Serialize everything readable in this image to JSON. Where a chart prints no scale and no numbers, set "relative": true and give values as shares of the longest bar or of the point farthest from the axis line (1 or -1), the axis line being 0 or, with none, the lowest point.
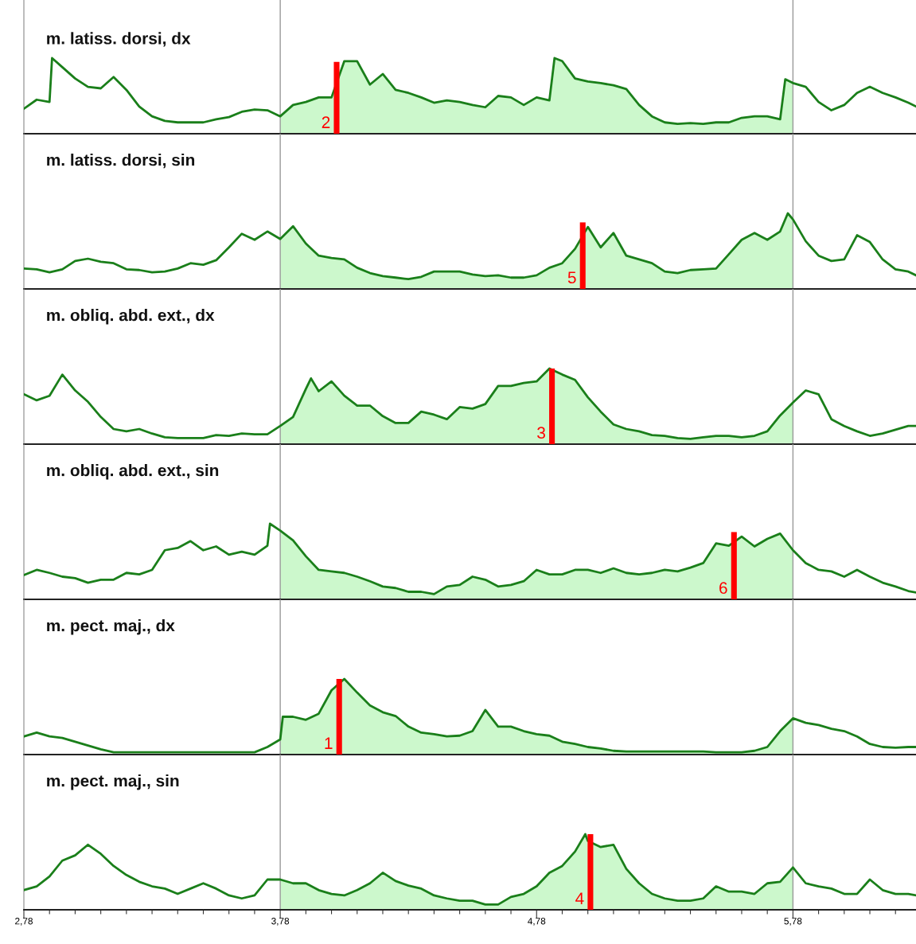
{
  "chart_data": [
    {
      "type": "line",
      "title": "m. latiss. dorsi, dx",
      "relative": true,
      "xlim": [
        2.78,
        6.26
      ],
      "tick_labels": false,
      "series": [
        {
          "color": "#1a7f1a",
          "x": [
            2.78,
            2.83,
            2.88,
            2.89,
            2.93,
            2.98,
            3.03,
            3.08,
            3.13,
            3.18,
            3.23,
            3.28,
            3.33,
            3.38,
            3.43,
            3.48,
            3.53,
            3.58,
            3.63,
            3.68,
            3.73,
            3.78,
            3.83,
            3.88,
            3.93,
            3.98,
            4.03,
            4.08,
            4.13,
            4.18,
            4.23,
            4.28,
            4.33,
            4.38,
            4.43,
            4.48,
            4.53,
            4.58,
            4.63,
            4.68,
            4.73,
            4.78,
            4.83,
            4.85,
            4.88,
            4.93,
            4.98,
            5.03,
            5.08,
            5.13,
            5.18,
            5.23,
            5.28,
            5.33,
            5.38,
            5.43,
            5.48,
            5.53,
            5.58,
            5.63,
            5.68,
            5.73,
            5.75,
            5.78,
            5.83,
            5.88,
            5.93,
            5.98,
            6.03,
            6.08,
            6.13,
            6.18,
            6.23,
            6.26
          ],
          "values": [
            0.33,
            0.45,
            0.42,
            1.0,
            0.88,
            0.73,
            0.62,
            0.6,
            0.75,
            0.58,
            0.36,
            0.23,
            0.17,
            0.15,
            0.15,
            0.15,
            0.19,
            0.22,
            0.29,
            0.32,
            0.31,
            0.23,
            0.38,
            0.42,
            0.48,
            0.48,
            0.96,
            0.96,
            0.65,
            0.79,
            0.58,
            0.54,
            0.48,
            0.41,
            0.44,
            0.42,
            0.38,
            0.35,
            0.5,
            0.48,
            0.38,
            0.48,
            0.44,
            1.0,
            0.96,
            0.73,
            0.69,
            0.67,
            0.64,
            0.59,
            0.38,
            0.23,
            0.15,
            0.13,
            0.14,
            0.13,
            0.15,
            0.15,
            0.21,
            0.23,
            0.23,
            0.19,
            0.72,
            0.67,
            0.62,
            0.42,
            0.31,
            0.38,
            0.54,
            0.62,
            0.54,
            0.48,
            0.41,
            0.36
          ]
        },
        {
          "type": "area",
          "color": "#ccf8cc",
          "x": [
            3.78,
            3.83,
            3.88,
            3.93,
            3.98,
            4.03,
            4.08,
            4.13,
            4.18,
            4.23,
            4.28,
            4.33,
            4.38,
            4.43,
            4.48,
            4.53,
            4.58,
            4.63,
            4.68,
            4.73,
            4.78,
            4.83,
            4.85,
            4.88,
            4.93,
            4.98,
            5.03,
            5.08,
            5.13,
            5.18,
            5.23,
            5.28,
            5.33,
            5.38,
            5.43,
            5.48,
            5.53,
            5.58,
            5.63,
            5.68,
            5.73,
            5.75,
            5.78
          ],
          "values": [
            0.23,
            0.38,
            0.42,
            0.48,
            0.48,
            0.96,
            0.96,
            0.65,
            0.79,
            0.58,
            0.54,
            0.48,
            0.41,
            0.44,
            0.42,
            0.38,
            0.35,
            0.5,
            0.48,
            0.38,
            0.48,
            0.44,
            1.0,
            0.96,
            0.73,
            0.69,
            0.67,
            0.64,
            0.59,
            0.38,
            0.23,
            0.15,
            0.13,
            0.14,
            0.13,
            0.15,
            0.15,
            0.21,
            0.23,
            0.23,
            0.19,
            0.72,
            0.67
          ]
        },
        {
          "type": "bar",
          "color": "#ff0000",
          "x": [
            4.0
          ],
          "values": [
            0.95
          ]
        }
      ],
      "annotations": [
        "2"
      ],
      "ref_lines": [
        {
          "axis": "x",
          "value": 3.78,
          "color": "#999999"
        },
        {
          "axis": "x",
          "value": 5.78,
          "color": "#999999"
        }
      ]
    },
    {
      "type": "line",
      "title": "m. latiss. dorsi, sin",
      "relative": true,
      "xlim": [
        2.78,
        6.26
      ],
      "tick_labels": false,
      "series": [
        {
          "color": "#1a7f1a",
          "x": [
            2.78,
            2.83,
            2.88,
            2.93,
            2.98,
            3.03,
            3.08,
            3.13,
            3.18,
            3.23,
            3.28,
            3.33,
            3.38,
            3.43,
            3.48,
            3.53,
            3.58,
            3.63,
            3.68,
            3.73,
            3.78,
            3.83,
            3.88,
            3.93,
            3.98,
            4.03,
            4.08,
            4.13,
            4.18,
            4.23,
            4.28,
            4.33,
            4.38,
            4.43,
            4.48,
            4.53,
            4.58,
            4.63,
            4.68,
            4.73,
            4.78,
            4.83,
            4.88,
            4.93,
            4.98,
            5.03,
            5.08,
            5.13,
            5.18,
            5.23,
            5.28,
            5.33,
            5.38,
            5.43,
            5.48,
            5.53,
            5.58,
            5.63,
            5.68,
            5.73,
            5.76,
            5.78,
            5.83,
            5.88,
            5.93,
            5.98,
            6.03,
            6.08,
            6.13,
            6.18,
            6.23,
            6.26
          ],
          "values": [
            0.27,
            0.26,
            0.22,
            0.26,
            0.37,
            0.4,
            0.36,
            0.34,
            0.26,
            0.25,
            0.22,
            0.23,
            0.27,
            0.34,
            0.32,
            0.38,
            0.55,
            0.73,
            0.65,
            0.76,
            0.66,
            0.83,
            0.6,
            0.44,
            0.41,
            0.39,
            0.28,
            0.21,
            0.17,
            0.15,
            0.13,
            0.16,
            0.23,
            0.23,
            0.23,
            0.19,
            0.17,
            0.18,
            0.15,
            0.15,
            0.18,
            0.28,
            0.34,
            0.53,
            0.82,
            0.55,
            0.74,
            0.44,
            0.39,
            0.34,
            0.23,
            0.21,
            0.25,
            0.26,
            0.27,
            0.46,
            0.65,
            0.74,
            0.65,
            0.76,
            1.0,
            0.92,
            0.63,
            0.44,
            0.37,
            0.39,
            0.71,
            0.62,
            0.39,
            0.26,
            0.23,
            0.18
          ]
        },
        {
          "type": "area",
          "color": "#ccf8cc",
          "x": [
            3.78,
            3.83,
            3.88,
            3.93,
            3.98,
            4.03,
            4.08,
            4.13,
            4.18,
            4.23,
            4.28,
            4.33,
            4.38,
            4.43,
            4.48,
            4.53,
            4.58,
            4.63,
            4.68,
            4.73,
            4.78,
            4.83,
            4.88,
            4.93,
            4.98,
            5.03,
            5.08,
            5.13,
            5.18,
            5.23,
            5.28,
            5.33,
            5.38,
            5.43,
            5.48,
            5.53,
            5.58,
            5.63,
            5.68,
            5.73,
            5.76,
            5.78
          ],
          "values": [
            0.66,
            0.83,
            0.6,
            0.44,
            0.41,
            0.39,
            0.28,
            0.21,
            0.17,
            0.15,
            0.13,
            0.16,
            0.23,
            0.23,
            0.23,
            0.19,
            0.17,
            0.18,
            0.15,
            0.15,
            0.18,
            0.28,
            0.34,
            0.53,
            0.82,
            0.55,
            0.74,
            0.44,
            0.39,
            0.34,
            0.23,
            0.21,
            0.25,
            0.26,
            0.27,
            0.46,
            0.65,
            0.74,
            0.65,
            0.76,
            1.0,
            0.92
          ]
        },
        {
          "type": "bar",
          "color": "#ff0000",
          "x": [
            4.96
          ],
          "values": [
            0.88
          ]
        }
      ],
      "annotations": [
        "5"
      ],
      "ref_lines": [
        {
          "axis": "x",
          "value": 3.78,
          "color": "#999999"
        },
        {
          "axis": "x",
          "value": 5.78,
          "color": "#999999"
        }
      ]
    },
    {
      "type": "line",
      "title": "m. obliq. abd. ext., dx",
      "relative": true,
      "xlim": [
        2.78,
        6.26
      ],
      "tick_labels": false,
      "series": [
        {
          "color": "#1a7f1a",
          "x": [
            2.78,
            2.83,
            2.88,
            2.93,
            2.98,
            3.03,
            3.08,
            3.13,
            3.18,
            3.23,
            3.28,
            3.33,
            3.38,
            3.43,
            3.48,
            3.53,
            3.58,
            3.63,
            3.68,
            3.73,
            3.78,
            3.83,
            3.88,
            3.9,
            3.93,
            3.98,
            4.03,
            4.08,
            4.13,
            4.18,
            4.23,
            4.28,
            4.33,
            4.38,
            4.43,
            4.48,
            4.53,
            4.58,
            4.63,
            4.68,
            4.73,
            4.78,
            4.83,
            4.88,
            4.93,
            4.98,
            5.03,
            5.08,
            5.13,
            5.18,
            5.23,
            5.28,
            5.33,
            5.38,
            5.43,
            5.48,
            5.53,
            5.58,
            5.63,
            5.68,
            5.73,
            5.78,
            5.83,
            5.88,
            5.93,
            5.98,
            6.03,
            6.08,
            6.13,
            6.18,
            6.23,
            6.26
          ],
          "values": [
            0.66,
            0.58,
            0.64,
            0.92,
            0.71,
            0.56,
            0.36,
            0.2,
            0.17,
            0.2,
            0.14,
            0.09,
            0.08,
            0.08,
            0.08,
            0.12,
            0.11,
            0.14,
            0.13,
            0.13,
            0.24,
            0.36,
            0.73,
            0.87,
            0.7,
            0.83,
            0.64,
            0.51,
            0.51,
            0.37,
            0.28,
            0.28,
            0.43,
            0.39,
            0.33,
            0.49,
            0.47,
            0.53,
            0.77,
            0.77,
            0.81,
            0.83,
            1.0,
            0.92,
            0.85,
            0.62,
            0.43,
            0.26,
            0.2,
            0.17,
            0.12,
            0.11,
            0.08,
            0.07,
            0.09,
            0.11,
            0.11,
            0.09,
            0.11,
            0.17,
            0.38,
            0.55,
            0.71,
            0.66,
            0.33,
            0.24,
            0.17,
            0.11,
            0.14,
            0.19,
            0.24,
            0.24
          ]
        },
        {
          "type": "area",
          "color": "#ccf8cc",
          "x": [
            3.78,
            3.83,
            3.88,
            3.9,
            3.93,
            3.98,
            4.03,
            4.08,
            4.13,
            4.18,
            4.23,
            4.28,
            4.33,
            4.38,
            4.43,
            4.48,
            4.53,
            4.58,
            4.63,
            4.68,
            4.73,
            4.78,
            4.83,
            4.88,
            4.93,
            4.98,
            5.03,
            5.08,
            5.13,
            5.18,
            5.23,
            5.28,
            5.33,
            5.38,
            5.43,
            5.48,
            5.53,
            5.58,
            5.63,
            5.68,
            5.73,
            5.78
          ],
          "values": [
            0.24,
            0.36,
            0.73,
            0.87,
            0.7,
            0.83,
            0.64,
            0.51,
            0.51,
            0.37,
            0.28,
            0.28,
            0.43,
            0.39,
            0.33,
            0.49,
            0.47,
            0.53,
            0.77,
            0.77,
            0.81,
            0.83,
            1.0,
            0.92,
            0.85,
            0.62,
            0.43,
            0.26,
            0.2,
            0.17,
            0.12,
            0.11,
            0.08,
            0.07,
            0.09,
            0.11,
            0.11,
            0.09,
            0.11,
            0.17,
            0.38,
            0.55
          ]
        },
        {
          "type": "bar",
          "color": "#ff0000",
          "x": [
            4.84
          ],
          "values": [
            1.0
          ]
        }
      ],
      "annotations": [
        "3"
      ],
      "ref_lines": [
        {
          "axis": "x",
          "value": 3.78,
          "color": "#999999"
        },
        {
          "axis": "x",
          "value": 5.78,
          "color": "#999999"
        }
      ]
    },
    {
      "type": "line",
      "title": "m. obliq. abd. ext., sin",
      "relative": true,
      "xlim": [
        2.78,
        6.26
      ],
      "tick_labels": false,
      "series": [
        {
          "color": "#1a7f1a",
          "x": [
            2.78,
            2.83,
            2.88,
            2.93,
            2.98,
            3.03,
            3.08,
            3.13,
            3.18,
            3.23,
            3.28,
            3.33,
            3.38,
            3.43,
            3.48,
            3.53,
            3.58,
            3.63,
            3.68,
            3.73,
            3.74,
            3.78,
            3.83,
            3.88,
            3.93,
            3.98,
            4.03,
            4.08,
            4.13,
            4.18,
            4.23,
            4.28,
            4.33,
            4.38,
            4.43,
            4.48,
            4.53,
            4.58,
            4.63,
            4.68,
            4.73,
            4.78,
            4.83,
            4.88,
            4.93,
            4.98,
            5.03,
            5.08,
            5.13,
            5.18,
            5.23,
            5.28,
            5.33,
            5.38,
            5.43,
            5.48,
            5.53,
            5.58,
            5.63,
            5.68,
            5.73,
            5.78,
            5.83,
            5.88,
            5.93,
            5.98,
            6.03,
            6.08,
            6.13,
            6.18,
            6.23,
            6.26
          ],
          "values": [
            0.32,
            0.39,
            0.35,
            0.3,
            0.28,
            0.22,
            0.26,
            0.26,
            0.35,
            0.33,
            0.39,
            0.65,
            0.68,
            0.77,
            0.65,
            0.7,
            0.59,
            0.63,
            0.59,
            0.71,
            1.0,
            0.91,
            0.78,
            0.57,
            0.39,
            0.37,
            0.35,
            0.3,
            0.24,
            0.17,
            0.15,
            0.1,
            0.1,
            0.07,
            0.17,
            0.19,
            0.3,
            0.26,
            0.17,
            0.19,
            0.24,
            0.39,
            0.33,
            0.33,
            0.39,
            0.39,
            0.35,
            0.41,
            0.35,
            0.33,
            0.35,
            0.39,
            0.37,
            0.42,
            0.48,
            0.74,
            0.71,
            0.83,
            0.7,
            0.8,
            0.87,
            0.65,
            0.48,
            0.39,
            0.37,
            0.3,
            0.39,
            0.3,
            0.22,
            0.17,
            0.11,
            0.09
          ]
        },
        {
          "type": "area",
          "color": "#ccf8cc",
          "x": [
            3.78,
            3.83,
            3.88,
            3.93,
            3.98,
            4.03,
            4.08,
            4.13,
            4.18,
            4.23,
            4.28,
            4.33,
            4.38,
            4.43,
            4.48,
            4.53,
            4.58,
            4.63,
            4.68,
            4.73,
            4.78,
            4.83,
            4.88,
            4.93,
            4.98,
            5.03,
            5.08,
            5.13,
            5.18,
            5.23,
            5.28,
            5.33,
            5.38,
            5.43,
            5.48,
            5.53,
            5.58,
            5.63,
            5.68,
            5.73,
            5.78
          ],
          "values": [
            0.91,
            0.78,
            0.57,
            0.39,
            0.37,
            0.35,
            0.3,
            0.24,
            0.17,
            0.15,
            0.1,
            0.1,
            0.07,
            0.17,
            0.19,
            0.3,
            0.26,
            0.17,
            0.19,
            0.24,
            0.39,
            0.33,
            0.33,
            0.39,
            0.39,
            0.35,
            0.41,
            0.35,
            0.33,
            0.35,
            0.39,
            0.37,
            0.42,
            0.48,
            0.74,
            0.71,
            0.83,
            0.7,
            0.8,
            0.87,
            0.65
          ]
        },
        {
          "type": "bar",
          "color": "#ff0000",
          "x": [
            5.55
          ],
          "values": [
            0.89
          ]
        }
      ],
      "annotations": [
        "6"
      ],
      "ref_lines": [
        {
          "axis": "x",
          "value": 3.78,
          "color": "#999999"
        },
        {
          "axis": "x",
          "value": 5.78,
          "color": "#999999"
        }
      ]
    },
    {
      "type": "line",
      "title": "m. pect. maj., dx",
      "relative": true,
      "xlim": [
        2.78,
        6.26
      ],
      "tick_labels": false,
      "series": [
        {
          "color": "#1a7f1a",
          "x": [
            2.78,
            2.83,
            2.88,
            2.93,
            2.98,
            3.03,
            3.08,
            3.13,
            3.18,
            3.23,
            3.28,
            3.33,
            3.38,
            3.43,
            3.48,
            3.53,
            3.58,
            3.63,
            3.68,
            3.73,
            3.78,
            3.79,
            3.83,
            3.88,
            3.93,
            3.98,
            4.03,
            4.08,
            4.13,
            4.18,
            4.23,
            4.28,
            4.33,
            4.38,
            4.43,
            4.48,
            4.53,
            4.58,
            4.63,
            4.68,
            4.73,
            4.78,
            4.83,
            4.88,
            4.93,
            4.98,
            5.03,
            5.08,
            5.13,
            5.18,
            5.23,
            5.28,
            5.33,
            5.38,
            5.43,
            5.48,
            5.53,
            5.58,
            5.63,
            5.68,
            5.73,
            5.78,
            5.83,
            5.88,
            5.93,
            5.98,
            6.03,
            6.08,
            6.13,
            6.18,
            6.23,
            6.26
          ],
          "values": [
            0.24,
            0.29,
            0.24,
            0.22,
            0.17,
            0.12,
            0.07,
            0.03,
            0.03,
            0.03,
            0.03,
            0.03,
            0.03,
            0.03,
            0.03,
            0.03,
            0.03,
            0.03,
            0.03,
            0.1,
            0.2,
            0.5,
            0.5,
            0.46,
            0.54,
            0.85,
            1.0,
            0.82,
            0.65,
            0.56,
            0.51,
            0.37,
            0.29,
            0.27,
            0.24,
            0.25,
            0.31,
            0.59,
            0.37,
            0.37,
            0.31,
            0.27,
            0.25,
            0.17,
            0.14,
            0.1,
            0.08,
            0.05,
            0.04,
            0.04,
            0.04,
            0.04,
            0.04,
            0.04,
            0.04,
            0.03,
            0.03,
            0.03,
            0.05,
            0.1,
            0.31,
            0.48,
            0.42,
            0.39,
            0.34,
            0.31,
            0.24,
            0.14,
            0.1,
            0.09,
            0.1,
            0.1
          ]
        },
        {
          "type": "area",
          "color": "#ccf8cc",
          "x": [
            3.78,
            3.79,
            3.83,
            3.88,
            3.93,
            3.98,
            4.03,
            4.08,
            4.13,
            4.18,
            4.23,
            4.28,
            4.33,
            4.38,
            4.43,
            4.48,
            4.53,
            4.58,
            4.63,
            4.68,
            4.73,
            4.78,
            4.83,
            4.88,
            4.93,
            4.98,
            5.03,
            5.08,
            5.13,
            5.18,
            5.23,
            5.28,
            5.33,
            5.38,
            5.43,
            5.48,
            5.53,
            5.58,
            5.63,
            5.68,
            5.73,
            5.78
          ],
          "values": [
            0.2,
            0.5,
            0.5,
            0.46,
            0.54,
            0.85,
            1.0,
            0.82,
            0.65,
            0.56,
            0.51,
            0.37,
            0.29,
            0.27,
            0.24,
            0.25,
            0.31,
            0.59,
            0.37,
            0.37,
            0.31,
            0.27,
            0.25,
            0.17,
            0.14,
            0.1,
            0.08,
            0.05,
            0.04,
            0.04,
            0.04,
            0.04,
            0.04,
            0.04,
            0.04,
            0.03,
            0.03,
            0.03,
            0.05,
            0.1,
            0.31,
            0.48
          ]
        },
        {
          "type": "bar",
          "color": "#ff0000",
          "x": [
            4.01
          ],
          "values": [
            1.0
          ]
        }
      ],
      "annotations": [
        "1"
      ],
      "ref_lines": [
        {
          "axis": "x",
          "value": 3.78,
          "color": "#999999"
        },
        {
          "axis": "x",
          "value": 5.78,
          "color": "#999999"
        }
      ]
    },
    {
      "type": "line",
      "title": "m. pect. maj., sin",
      "relative": true,
      "xlim": [
        2.78,
        6.26
      ],
      "tick_labels": "x",
      "series": [
        {
          "color": "#1a7f1a",
          "x": [
            2.78,
            2.83,
            2.88,
            2.93,
            2.98,
            3.03,
            3.08,
            3.13,
            3.18,
            3.23,
            3.28,
            3.33,
            3.38,
            3.43,
            3.48,
            3.53,
            3.58,
            3.63,
            3.68,
            3.73,
            3.78,
            3.83,
            3.88,
            3.93,
            3.98,
            4.03,
            4.08,
            4.13,
            4.18,
            4.23,
            4.28,
            4.33,
            4.38,
            4.43,
            4.48,
            4.53,
            4.58,
            4.63,
            4.68,
            4.73,
            4.78,
            4.83,
            4.88,
            4.93,
            4.97,
            4.98,
            5.03,
            5.08,
            5.13,
            5.18,
            5.23,
            5.28,
            5.33,
            5.38,
            5.43,
            5.48,
            5.53,
            5.58,
            5.63,
            5.68,
            5.73,
            5.78,
            5.83,
            5.88,
            5.93,
            5.98,
            6.03,
            6.08,
            6.13,
            6.18,
            6.23,
            6.26
          ],
          "values": [
            0.26,
            0.31,
            0.44,
            0.65,
            0.72,
            0.86,
            0.74,
            0.58,
            0.46,
            0.37,
            0.31,
            0.28,
            0.21,
            0.28,
            0.35,
            0.28,
            0.19,
            0.15,
            0.19,
            0.4,
            0.4,
            0.35,
            0.35,
            0.26,
            0.21,
            0.19,
            0.26,
            0.35,
            0.49,
            0.38,
            0.32,
            0.28,
            0.19,
            0.15,
            0.12,
            0.12,
            0.07,
            0.07,
            0.17,
            0.21,
            0.31,
            0.49,
            0.58,
            0.77,
            1.0,
            0.91,
            0.83,
            0.86,
            0.54,
            0.35,
            0.21,
            0.15,
            0.12,
            0.12,
            0.15,
            0.31,
            0.24,
            0.24,
            0.21,
            0.35,
            0.37,
            0.56,
            0.35,
            0.31,
            0.28,
            0.21,
            0.21,
            0.4,
            0.26,
            0.21,
            0.21,
            0.19
          ]
        },
        {
          "type": "area",
          "color": "#ccf8cc",
          "x": [
            3.78,
            3.83,
            3.88,
            3.93,
            3.98,
            4.03,
            4.08,
            4.13,
            4.18,
            4.23,
            4.28,
            4.33,
            4.38,
            4.43,
            4.48,
            4.53,
            4.58,
            4.63,
            4.68,
            4.73,
            4.78,
            4.83,
            4.88,
            4.93,
            4.97,
            4.98,
            5.03,
            5.08,
            5.13,
            5.18,
            5.23,
            5.28,
            5.33,
            5.38,
            5.43,
            5.48,
            5.53,
            5.58,
            5.63,
            5.68,
            5.73,
            5.78
          ],
          "values": [
            0.4,
            0.35,
            0.35,
            0.26,
            0.21,
            0.19,
            0.26,
            0.35,
            0.49,
            0.38,
            0.32,
            0.28,
            0.19,
            0.15,
            0.12,
            0.12,
            0.07,
            0.07,
            0.17,
            0.21,
            0.31,
            0.49,
            0.58,
            0.77,
            1.0,
            0.91,
            0.83,
            0.86,
            0.54,
            0.35,
            0.21,
            0.15,
            0.12,
            0.12,
            0.15,
            0.31,
            0.24,
            0.24,
            0.21,
            0.35,
            0.37,
            0.56
          ]
        },
        {
          "type": "bar",
          "color": "#ff0000",
          "x": [
            4.99
          ],
          "values": [
            1.0
          ]
        }
      ],
      "annotations": [
        "4"
      ],
      "xticks": [
        {
          "value": 2.78,
          "label": "2,78"
        },
        {
          "value": 2.88,
          "label": null
        },
        {
          "value": 2.98,
          "label": null
        },
        {
          "value": 3.08,
          "label": null
        },
        {
          "value": 3.18,
          "label": null
        },
        {
          "value": 3.28,
          "label": null
        },
        {
          "value": 3.38,
          "label": null
        },
        {
          "value": 3.48,
          "label": null
        },
        {
          "value": 3.58,
          "label": null
        },
        {
          "value": 3.68,
          "label": null
        },
        {
          "value": 3.78,
          "label": "3,78"
        },
        {
          "value": 3.88,
          "label": null
        },
        {
          "value": 3.98,
          "label": null
        },
        {
          "value": 4.08,
          "label": null
        },
        {
          "value": 4.18,
          "label": null
        },
        {
          "value": 4.28,
          "label": null
        },
        {
          "value": 4.38,
          "label": null
        },
        {
          "value": 4.48,
          "label": null
        },
        {
          "value": 4.58,
          "label": null
        },
        {
          "value": 4.68,
          "label": null
        },
        {
          "value": 4.78,
          "label": "4,78"
        },
        {
          "value": 4.88,
          "label": null
        },
        {
          "value": 4.98,
          "label": null
        },
        {
          "value": 5.08,
          "label": null
        },
        {
          "value": 5.18,
          "label": null
        },
        {
          "value": 5.28,
          "label": null
        },
        {
          "value": 5.38,
          "label": null
        },
        {
          "value": 5.48,
          "label": null
        },
        {
          "value": 5.58,
          "label": null
        },
        {
          "value": 5.68,
          "label": null
        },
        {
          "value": 5.78,
          "label": "5,78"
        },
        {
          "value": 5.88,
          "label": null
        },
        {
          "value": 5.98,
          "label": null
        },
        {
          "value": 6.08,
          "label": null
        },
        {
          "value": 6.18,
          "label": null
        }
      ],
      "ref_lines": [
        {
          "axis": "x",
          "value": 3.78,
          "color": "#999999"
        },
        {
          "axis": "x",
          "value": 5.78,
          "color": "#999999"
        }
      ]
    }
  ]
}
